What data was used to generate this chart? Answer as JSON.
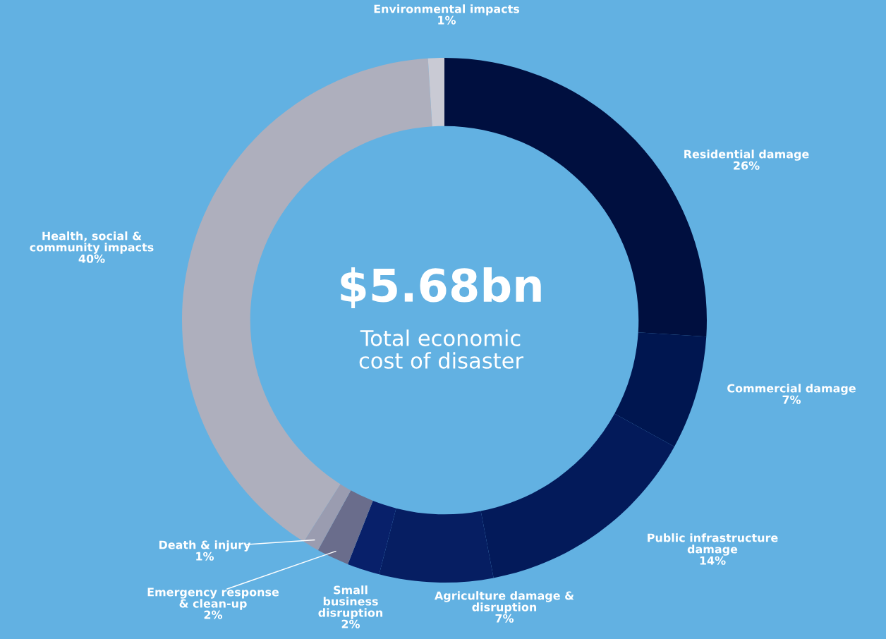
{
  "chart_data": {
    "type": "donut",
    "categories": [
      "Residential damage",
      "Commercial damage",
      "Public infrastructure\ndamage",
      "Agriculture damage &\ndisruption",
      "Small\nbusiness\ndisruption",
      "Emergency response\n& clean-up",
      "Death & injury",
      "Health, social &\ncommunity impacts",
      "Environmental impacts"
    ],
    "values": [
      26,
      7,
      14,
      7,
      2,
      2,
      1,
      40,
      1
    ],
    "value_labels": [
      "26%",
      "7%",
      "14%",
      "7%",
      "2%",
      "2%",
      "1%",
      "40%",
      "1%"
    ],
    "colors": [
      "#000f3f",
      "#001650",
      "#031a5a",
      "#061e62",
      "#08206a",
      "#6a6d8c",
      "#9a9cb0",
      "#aeafbd",
      "#c9cad4"
    ],
    "annotations": [
      "$5.68bn",
      "Total economic\ncost of disaster"
    ]
  }
}
